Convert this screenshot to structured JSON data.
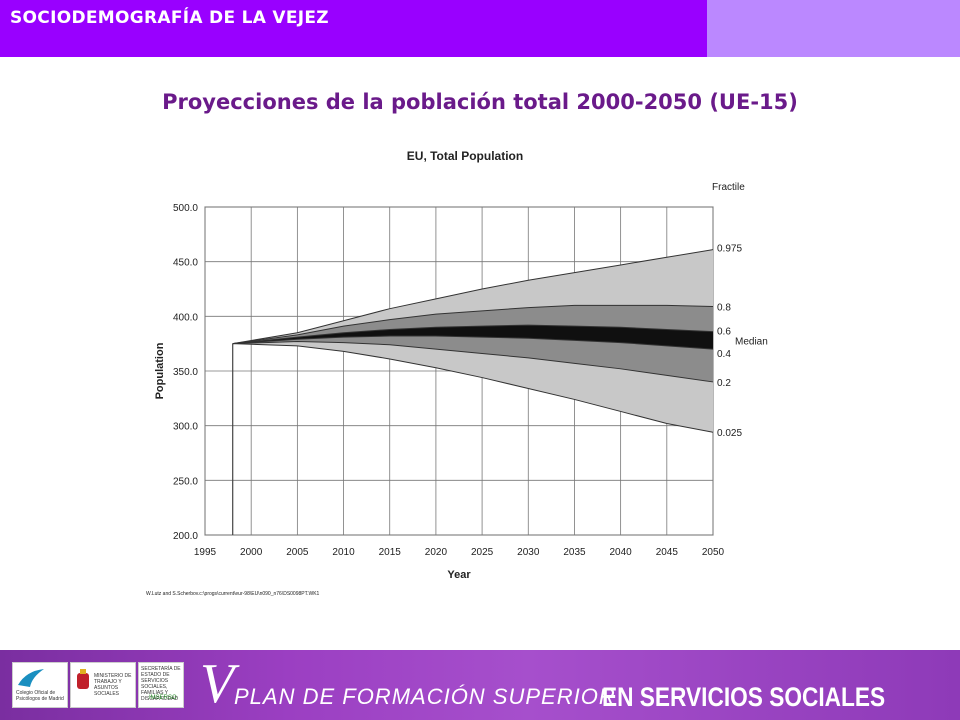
{
  "header": {
    "title": "SOCIODEMOGRAFÍA DE LA VEJEZ"
  },
  "slide": {
    "title": "Proyecciones de la población total 2000-2050 (UE-15)"
  },
  "colors": {
    "header": "#9900ff",
    "header_side": "#bb88ff",
    "title": "#6a1a8a",
    "band_outer": "#c8c8c8",
    "band_mid": "#8c8c8c",
    "band_inner": "#101010"
  },
  "chart_data": {
    "type": "area",
    "title": "EU, Total Population",
    "xlabel": "Year",
    "ylabel": "Population",
    "xlim": [
      1995,
      2050
    ],
    "ylim": [
      200,
      500
    ],
    "x_ticks": [
      1995,
      2000,
      2005,
      2010,
      2015,
      2020,
      2025,
      2030,
      2035,
      2040,
      2045,
      2050
    ],
    "y_ticks": [
      200.0,
      250.0,
      300.0,
      350.0,
      400.0,
      450.0,
      500.0
    ],
    "grid": true,
    "legend_title": "Fractile",
    "start": {
      "x": 1998,
      "y": 375
    },
    "x": [
      1998,
      2005,
      2010,
      2015,
      2020,
      2025,
      2030,
      2035,
      2040,
      2045,
      2050
    ],
    "series": [
      {
        "name": "0.975",
        "values": [
          375,
          385,
          396,
          407,
          416,
          425,
          433,
          440,
          447,
          454,
          461
        ]
      },
      {
        "name": "0.8",
        "values": [
          375,
          383,
          391,
          397,
          402,
          405,
          408,
          410,
          410,
          410,
          409
        ]
      },
      {
        "name": "0.6",
        "values": [
          375,
          381,
          385,
          388,
          390,
          391,
          392,
          391,
          390,
          388,
          386
        ]
      },
      {
        "name": "0.4",
        "values": [
          375,
          379,
          381,
          382,
          382,
          381,
          380,
          378,
          376,
          373,
          370
        ]
      },
      {
        "name": "0.2",
        "values": [
          375,
          377,
          376,
          374,
          370,
          366,
          362,
          357,
          352,
          346,
          340
        ]
      },
      {
        "name": "0.025",
        "values": [
          375,
          373,
          368,
          361,
          353,
          344,
          334,
          324,
          313,
          302,
          294
        ]
      }
    ],
    "annotations": [
      "Median"
    ],
    "footnote": "W.Lutz and S.Scherbov.c:\\progs\\current\\eur-98\\EU\\n090_n76\\DS0098PT.WK1"
  },
  "footer": {
    "logo1_text": "Colegio Oficial de Psicólogos de Madrid",
    "logo2_text": "MINISTERIO DE TRABAJO Y ASUNTOS SOCIALES",
    "logo3_text": "SECRETARÍA DE ESTADO DE SERVICIOS SOCIALES, FAMILIAS Y DISCAPACIDAD",
    "logo3_sub": "IMSERSO",
    "plan_numeral": "V",
    "plan_text": "PLAN DE FORMACIÓN SUPERIOR",
    "plan_strong": "EN SERVICIOS SOCIALES"
  }
}
